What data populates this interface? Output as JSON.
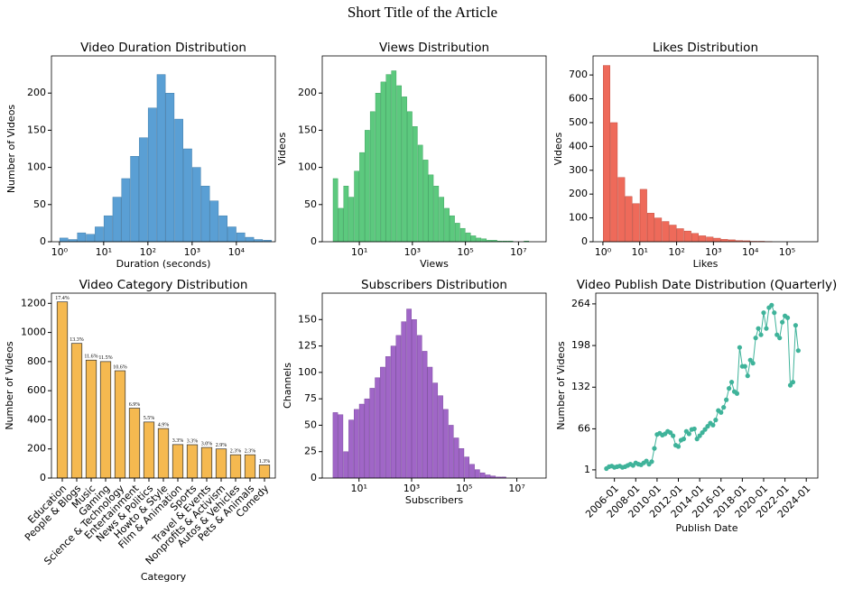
{
  "title": "Short Title of the Article",
  "chart_data": [
    {
      "type": "histogram",
      "title": "Video Duration Distribution",
      "xlabel": "Duration (seconds)",
      "ylabel": "Number of Videos",
      "color": "#5a9fd4",
      "edge_color": "#2f6e9e",
      "log_x": true,
      "bins": [
        1,
        1.585,
        2.512,
        3.981,
        6.31,
        10,
        15.85,
        25.12,
        39.81,
        63.1,
        100,
        158.5,
        251.2,
        398.1,
        631,
        1000,
        1585,
        2512,
        3981,
        6310,
        10000,
        15850,
        25120,
        39810,
        63100
      ],
      "counts": [
        5,
        3,
        12,
        10,
        20,
        35,
        60,
        85,
        115,
        140,
        180,
        225,
        200,
        165,
        125,
        100,
        75,
        55,
        35,
        20,
        12,
        6,
        3,
        2
      ],
      "xlim": [
        0.66,
        76000
      ],
      "ylim": [
        0,
        250
      ],
      "xticks": [
        {
          "value": 1,
          "label": "10⁰"
        },
        {
          "value": 10,
          "label": "10¹"
        },
        {
          "value": 100,
          "label": "10²"
        },
        {
          "value": 1000,
          "label": "10³"
        },
        {
          "value": 10000,
          "label": "10⁴"
        }
      ],
      "yticks": [
        0,
        50,
        100,
        150,
        200
      ]
    },
    {
      "type": "histogram",
      "title": "Views Distribution",
      "xlabel": "Views",
      "ylabel": "Videos",
      "color": "#5cc97e",
      "edge_color": "#2e9a52",
      "log_x": true,
      "bins": [
        1,
        1.585,
        2.512,
        3.981,
        6.31,
        10,
        15.85,
        25.12,
        39.81,
        63.1,
        100,
        158.5,
        251.2,
        398.1,
        631,
        1000,
        1585,
        2512,
        3981,
        6310,
        10000,
        15850,
        25120,
        39810,
        63100,
        100000,
        158500,
        251200,
        398100,
        631000,
        1000000,
        1585000,
        2512000,
        3981000,
        6310000,
        10000000,
        15850000,
        25120000
      ],
      "counts": [
        85,
        45,
        75,
        60,
        95,
        120,
        150,
        175,
        200,
        215,
        225,
        230,
        210,
        195,
        175,
        155,
        130,
        110,
        90,
        75,
        60,
        45,
        35,
        25,
        18,
        12,
        8,
        5,
        4,
        2,
        2,
        1,
        1,
        1,
        0,
        0,
        1
      ],
      "xlim": [
        0.4,
        110000000
      ],
      "ylim": [
        0,
        250
      ],
      "xticks": [
        {
          "value": 10,
          "label": "10¹"
        },
        {
          "value": 1000,
          "label": "10³"
        },
        {
          "value": 100000,
          "label": "10⁵"
        },
        {
          "value": 10000000,
          "label": "10⁷"
        }
      ],
      "yticks": [
        0,
        50,
        100,
        150,
        200
      ]
    },
    {
      "type": "histogram",
      "title": "Likes Distribution",
      "xlabel": "Likes",
      "ylabel": "Videos",
      "color": "#ee6a5a",
      "edge_color": "#b83f30",
      "log_x": true,
      "bins": [
        1,
        1.585,
        2.512,
        3.981,
        6.31,
        10,
        15.85,
        25.12,
        39.81,
        63.1,
        100,
        158.5,
        251.2,
        398.1,
        631,
        1000,
        1585,
        2512,
        3981,
        6310,
        10000,
        15850,
        25120,
        39810
      ],
      "counts": [
        740,
        500,
        270,
        190,
        160,
        220,
        120,
        100,
        85,
        70,
        55,
        45,
        35,
        25,
        20,
        15,
        10,
        8,
        5,
        4,
        2,
        2,
        1
      ],
      "xlim": [
        0.54,
        680000
      ],
      "ylim": [
        0,
        780
      ],
      "xticks": [
        {
          "value": 1,
          "label": "10⁰"
        },
        {
          "value": 10,
          "label": "10¹"
        },
        {
          "value": 100,
          "label": "10²"
        },
        {
          "value": 1000,
          "label": "10³"
        },
        {
          "value": 10000,
          "label": "10⁴"
        },
        {
          "value": 100000,
          "label": "10⁵"
        }
      ],
      "yticks": [
        0,
        100,
        200,
        300,
        400,
        500,
        600,
        700
      ]
    },
    {
      "type": "bar",
      "title": "Video Category Distribution",
      "xlabel": "Category",
      "ylabel": "Number of Videos",
      "color": "#f5b950",
      "edge_color": "#333333",
      "categories": [
        "Education",
        "People & Blogs",
        "Music",
        "Gaming",
        "Science & Technology",
        "Entertainment",
        "News & Politics",
        "Howto & Style",
        "Film & Animation",
        "Sports",
        "Travel & Events",
        "Nonprofits & Activism",
        "Autos & Vehicles",
        "Pets & Animals",
        "Comedy"
      ],
      "values": [
        1210,
        925,
        810,
        800,
        737,
        480,
        385,
        340,
        230,
        229,
        210,
        200,
        160,
        160,
        90
      ],
      "bar_labels": [
        "17.4%",
        "13.3%",
        "11.6%",
        "11.5%",
        "10.6%",
        "6.9%",
        "5.5%",
        "4.9%",
        "3.3%",
        "3.3%",
        "3.0%",
        "2.9%",
        "2.3%",
        "2.3%",
        "1.3%"
      ],
      "ylim": [
        0,
        1270
      ],
      "yticks": [
        0,
        200,
        400,
        600,
        800,
        1000,
        1200
      ]
    },
    {
      "type": "histogram",
      "title": "Subscribers Distribution",
      "xlabel": "Subscribers",
      "ylabel": "Channels",
      "color": "#a066c7",
      "edge_color": "#6e3a94",
      "log_x": true,
      "bins": [
        1,
        1.585,
        2.512,
        3.981,
        6.31,
        10,
        15.85,
        25.12,
        39.81,
        63.1,
        100,
        158.5,
        251.2,
        398.1,
        631,
        1000,
        1585,
        2512,
        3981,
        6310,
        10000,
        15850,
        25120,
        39810,
        63100,
        100000,
        158500,
        251200,
        398100,
        631000,
        1000000,
        1585000,
        2512000,
        3981000,
        6310000,
        10000000,
        15850000,
        25120000
      ],
      "counts": [
        62,
        60,
        25,
        55,
        65,
        70,
        75,
        85,
        95,
        105,
        115,
        125,
        135,
        148,
        160,
        150,
        135,
        120,
        105,
        90,
        78,
        65,
        50,
        38,
        28,
        20,
        13,
        8,
        5,
        3,
        2,
        1,
        1,
        0,
        0,
        0,
        0
      ],
      "xlim": [
        0.4,
        130000000
      ],
      "ylim": [
        0,
        175
      ],
      "xticks": [
        {
          "value": 10,
          "label": "10¹"
        },
        {
          "value": 1000,
          "label": "10³"
        },
        {
          "value": 100000,
          "label": "10⁵"
        },
        {
          "value": 10000000,
          "label": "10⁷"
        }
      ],
      "yticks": [
        0,
        25,
        50,
        75,
        100,
        125,
        150
      ]
    },
    {
      "type": "line",
      "title": "Video Publish Date Distribution (Quarterly)",
      "xlabel": "Publish Date",
      "ylabel": "Number of Videos",
      "color": "#3fb39a",
      "x": [
        "2005-04",
        "2005-07",
        "2005-10",
        "2006-01",
        "2006-04",
        "2006-07",
        "2006-10",
        "2007-01",
        "2007-04",
        "2007-07",
        "2007-10",
        "2008-01",
        "2008-04",
        "2008-07",
        "2008-10",
        "2009-01",
        "2009-04",
        "2009-07",
        "2009-10",
        "2010-01",
        "2010-04",
        "2010-07",
        "2010-10",
        "2011-01",
        "2011-04",
        "2011-07",
        "2011-10",
        "2012-01",
        "2012-04",
        "2012-07",
        "2012-10",
        "2013-01",
        "2013-04",
        "2013-07",
        "2013-10",
        "2014-01",
        "2014-04",
        "2014-07",
        "2014-10",
        "2015-01",
        "2015-04",
        "2015-07",
        "2015-10",
        "2016-01",
        "2016-04",
        "2016-07",
        "2016-10",
        "2017-01",
        "2017-04",
        "2017-07",
        "2017-10",
        "2018-01",
        "2018-04",
        "2018-07",
        "2018-10",
        "2019-01",
        "2019-04",
        "2019-07",
        "2019-10",
        "2020-01",
        "2020-04",
        "2020-07",
        "2020-10",
        "2021-01",
        "2021-04",
        "2021-07",
        "2021-10",
        "2022-01",
        "2022-04",
        "2022-07",
        "2022-10",
        "2023-01",
        "2023-04"
      ],
      "values": [
        3,
        6,
        7,
        5,
        6,
        7,
        5,
        6,
        8,
        10,
        8,
        12,
        10,
        9,
        12,
        15,
        10,
        14,
        35,
        57,
        59,
        56,
        58,
        62,
        60,
        55,
        40,
        38,
        48,
        50,
        62,
        58,
        65,
        66,
        50,
        55,
        60,
        65,
        70,
        75,
        72,
        80,
        95,
        92,
        100,
        112,
        130,
        140,
        125,
        122,
        195,
        165,
        165,
        150,
        175,
        170,
        210,
        225,
        215,
        250,
        225,
        258,
        262,
        250,
        215,
        210,
        235,
        245,
        242,
        135,
        140,
        230,
        190
      ],
      "xlim": [
        "2004-04",
        "2025-02"
      ],
      "ylim": [
        -12,
        281
      ],
      "xticks": [
        "2006-01",
        "2008-01",
        "2010-01",
        "2012-01",
        "2014-01",
        "2016-01",
        "2018-01",
        "2020-01",
        "2022-01",
        "2024-01"
      ],
      "yticks": [
        1,
        66,
        132,
        198,
        264
      ]
    }
  ]
}
